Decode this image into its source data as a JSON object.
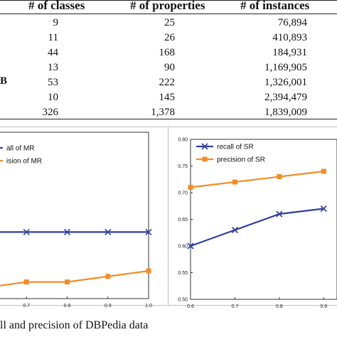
{
  "table": {
    "headers": [
      "# of classes",
      "# of properties",
      "# of instances"
    ],
    "row_stubs": [
      "",
      "",
      "",
      "",
      "B",
      "",
      ""
    ],
    "rows": [
      [
        "9",
        "25",
        "76,894"
      ],
      [
        "11",
        "26",
        "410,893"
      ],
      [
        "44",
        "168",
        "184,931"
      ],
      [
        "13",
        "90",
        "1,169,905"
      ],
      [
        "53",
        "222",
        "1,326,001"
      ],
      [
        "10",
        "145",
        "2,394,479"
      ],
      [
        "326",
        "1,378",
        "1,839,009"
      ]
    ]
  },
  "chart_data": [
    {
      "type": "line",
      "x": [
        0.6,
        0.7,
        0.8,
        0.9,
        1.0
      ],
      "xticks": [
        "0.7",
        "0.8",
        "0.9",
        "1.0"
      ],
      "ylim": [
        0.5,
        0.8
      ],
      "series": [
        {
          "name": "recall of MR",
          "values": [
            0.62,
            0.62,
            0.62,
            0.62,
            0.62
          ],
          "color": "#2f3e9e",
          "marker": "x"
        },
        {
          "name": "precision of MR",
          "values": [
            0.52,
            0.53,
            0.53,
            0.54,
            0.55
          ],
          "color": "#f28c28",
          "marker": "square"
        }
      ],
      "legend_visible": [
        "all of MR",
        "ision of MR"
      ],
      "grid": false
    },
    {
      "type": "line",
      "x": [
        0.6,
        0.7,
        0.8,
        0.9
      ],
      "xticks": [
        "0.6",
        "0.7",
        "0.8",
        "0.9"
      ],
      "yticks": [
        "0.50",
        "0.55",
        "0.60",
        "0.65",
        "0.70",
        "0.75",
        "0.80"
      ],
      "ylim": [
        0.5,
        0.8
      ],
      "series": [
        {
          "name": "recall of SR",
          "values": [
            0.6,
            0.63,
            0.66,
            0.67
          ],
          "color": "#2f3e9e",
          "marker": "x"
        },
        {
          "name": "precision of SR",
          "values": [
            0.71,
            0.72,
            0.73,
            0.74
          ],
          "color": "#f28c28",
          "marker": "square"
        }
      ],
      "legend": "top-left",
      "grid": false
    }
  ],
  "caption": "ll and precision of DBPedia data"
}
